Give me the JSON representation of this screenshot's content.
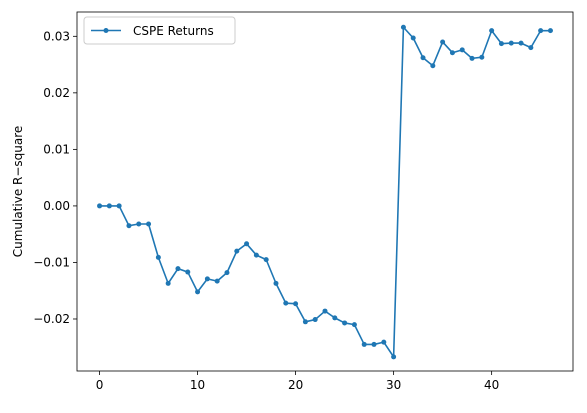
{
  "chart_data": {
    "type": "line",
    "title": "",
    "xlabel": "",
    "ylabel": "Cumulative R−square",
    "xlim": [
      -2.3,
      48.3
    ],
    "ylim": [
      -0.0292,
      0.0343
    ],
    "x_ticks": [
      0,
      10,
      20,
      30,
      40
    ],
    "x_tick_labels": [
      "0",
      "10",
      "20",
      "30",
      "40"
    ],
    "y_ticks": [
      -0.02,
      -0.01,
      0.0,
      0.01,
      0.02,
      0.03
    ],
    "y_tick_labels": [
      "−0.02",
      "−0.01",
      "0.00",
      "0.01",
      "0.02",
      "0.03"
    ],
    "grid": false,
    "legend_position": "top-left",
    "series": [
      {
        "name": "CSPE Returns",
        "color": "#1f77b4",
        "marker": "circle",
        "x": [
          0,
          1,
          2,
          3,
          4,
          5,
          6,
          7,
          8,
          9,
          10,
          11,
          12,
          13,
          14,
          15,
          16,
          17,
          18,
          19,
          20,
          21,
          22,
          23,
          24,
          25,
          26,
          27,
          28,
          29,
          30,
          31,
          32,
          33,
          34,
          35,
          36,
          37,
          38,
          39,
          40,
          41,
          42,
          43,
          44,
          45,
          46
        ],
        "values": [
          0.0,
          0.0,
          0.0,
          -0.0035,
          -0.0032,
          -0.0032,
          -0.0091,
          -0.0137,
          -0.0111,
          -0.0117,
          -0.0152,
          -0.0129,
          -0.0133,
          -0.0118,
          -0.008,
          -0.0067,
          -0.0087,
          -0.0095,
          -0.0137,
          -0.0172,
          -0.0173,
          -0.0205,
          -0.0201,
          -0.0186,
          -0.0198,
          -0.0207,
          -0.021,
          -0.0245,
          -0.0245,
          -0.0241,
          -0.0267,
          0.0316,
          0.0297,
          0.0262,
          0.0248,
          0.029,
          0.0271,
          0.0276,
          0.0261,
          0.0263,
          0.031,
          0.0287,
          0.0288,
          0.0288,
          0.028,
          0.031,
          0.031
        ]
      }
    ]
  }
}
